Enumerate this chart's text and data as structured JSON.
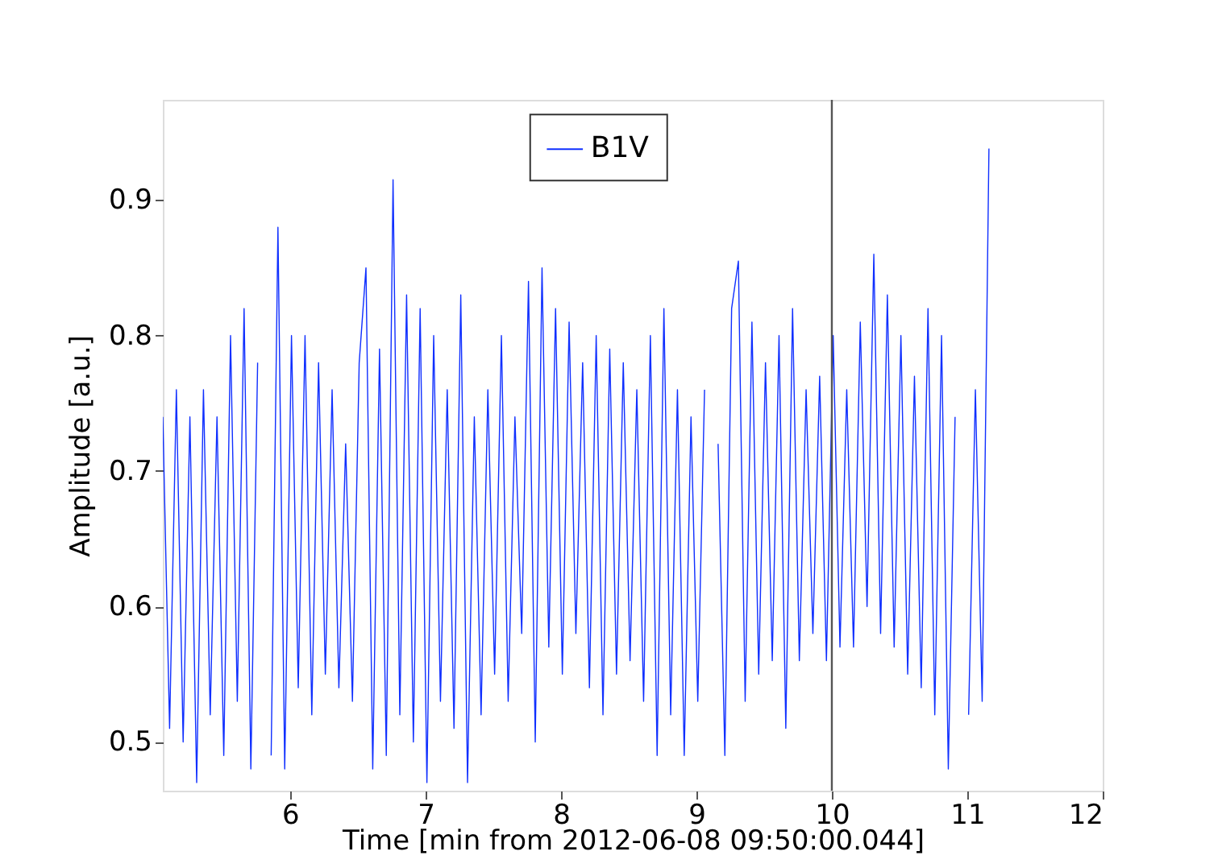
{
  "chart_data": {
    "type": "line",
    "xlabel": "Time [min from 2012-06-08 09:50:00.044]",
    "ylabel": "Amplitude [a.u.]",
    "xlim": [
      5.06,
      12
    ],
    "xticks": [
      6,
      7,
      8,
      9,
      10,
      11,
      12
    ],
    "ylim": [
      0.464,
      0.974
    ],
    "yticks": [
      0.5,
      0.6,
      0.7,
      0.8,
      0.9
    ],
    "grid": false,
    "legend": "top",
    "line_style": "solid",
    "marker": "none",
    "ref_lines": [
      {
        "axis": "x",
        "value": 10,
        "color": "#555555"
      }
    ],
    "series": [
      {
        "name": "B1V",
        "color": "#0f2fff",
        "x": [
          5.06,
          5.11,
          5.16,
          5.21,
          5.26,
          5.31,
          5.36,
          5.41,
          5.46,
          5.51,
          5.56,
          5.61,
          5.66,
          5.71,
          5.76,
          5.81,
          5.86,
          5.91,
          5.96,
          6.01,
          6.06,
          6.11,
          6.16,
          6.21,
          6.26,
          6.31,
          6.36,
          6.41,
          6.46,
          6.51,
          6.56,
          6.61,
          6.66,
          6.71,
          6.76,
          6.81,
          6.86,
          6.91,
          6.96,
          7.01,
          7.06,
          7.11,
          7.16,
          7.21,
          7.26,
          7.31,
          7.36,
          7.41,
          7.46,
          7.51,
          7.56,
          7.61,
          7.66,
          7.71,
          7.76,
          7.81,
          7.86,
          7.91,
          7.96,
          8.01,
          8.06,
          8.11,
          8.16,
          8.21,
          8.26,
          8.31,
          8.36,
          8.41,
          8.46,
          8.51,
          8.56,
          8.61,
          8.66,
          8.71,
          8.76,
          8.81,
          8.86,
          8.91,
          8.96,
          9.01,
          9.06,
          9.11,
          9.16,
          9.21,
          9.26,
          9.31,
          9.36,
          9.41,
          9.46,
          9.51,
          9.56,
          9.61,
          9.66,
          9.71,
          9.76,
          9.81,
          9.86,
          9.91,
          9.96,
          10.01,
          10.06,
          10.11,
          10.16,
          10.21,
          10.26,
          10.31,
          10.36,
          10.41,
          10.46,
          10.51,
          10.56,
          10.61,
          10.66,
          10.71,
          10.76,
          10.81,
          10.86,
          10.91,
          10.96,
          11.01,
          11.06,
          11.11,
          11.16
        ],
        "values": [
          0.74,
          0.51,
          0.76,
          0.5,
          0.74,
          0.47,
          0.76,
          0.52,
          0.74,
          0.49,
          0.8,
          0.53,
          0.82,
          0.48,
          0.78,
          null,
          0.49,
          0.88,
          0.48,
          0.8,
          0.54,
          0.8,
          0.52,
          0.78,
          0.55,
          0.76,
          0.54,
          0.72,
          0.53,
          0.78,
          0.85,
          0.48,
          0.79,
          0.49,
          0.915,
          0.52,
          0.83,
          0.5,
          0.82,
          0.47,
          0.8,
          0.53,
          0.76,
          0.51,
          0.83,
          0.47,
          0.74,
          0.52,
          0.76,
          0.55,
          0.8,
          0.53,
          0.74,
          0.58,
          0.84,
          0.5,
          0.85,
          0.57,
          0.82,
          0.55,
          0.81,
          0.58,
          0.78,
          0.54,
          0.8,
          0.52,
          0.79,
          0.55,
          0.78,
          0.56,
          0.76,
          0.53,
          0.8,
          0.49,
          0.82,
          0.52,
          0.76,
          0.49,
          0.74,
          0.53,
          0.76,
          null,
          0.72,
          0.49,
          0.82,
          0.855,
          0.53,
          0.81,
          0.55,
          0.78,
          0.56,
          0.8,
          0.51,
          0.82,
          0.56,
          0.76,
          0.58,
          0.77,
          0.56,
          0.8,
          0.57,
          0.76,
          0.57,
          0.81,
          0.6,
          0.86,
          0.58,
          0.83,
          0.57,
          0.8,
          0.55,
          0.77,
          0.54,
          0.82,
          0.52,
          0.8,
          0.48,
          0.74,
          null,
          0.52,
          0.76,
          0.53,
          0.938
        ]
      }
    ]
  }
}
